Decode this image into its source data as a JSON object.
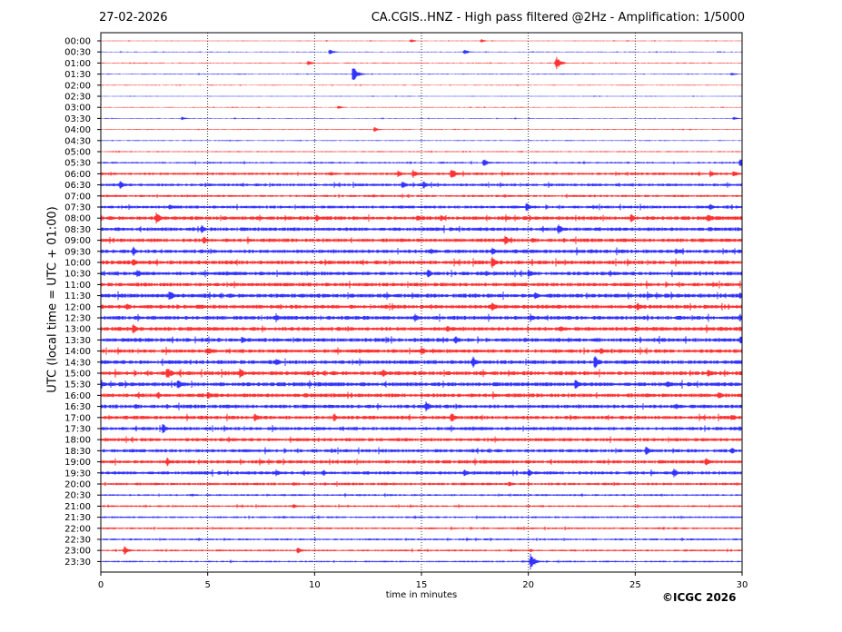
{
  "header": {
    "date": "27-02-2026",
    "title": "CA.CGIS..HNZ - High pass filtered @2Hz - Amplification: 1/5000"
  },
  "footer": {
    "copyright": "©ICGC 2026"
  },
  "chart_data": {
    "type": "line",
    "title": "CA.CGIS..HNZ - High pass filtered @2Hz - Amplification: 1/5000",
    "xlabel": "time in minutes",
    "ylabel": "UTC (local time = UTC + 01:00)",
    "xlim": [
      0,
      30
    ],
    "xticks": [
      0,
      5,
      10,
      15,
      20,
      25,
      30
    ],
    "vertical_gridlines": [
      5,
      10,
      15,
      20,
      25
    ],
    "row_labels": [
      "00:00",
      "00:30",
      "01:00",
      "01:30",
      "02:00",
      "02:30",
      "03:00",
      "03:30",
      "04:00",
      "04:30",
      "05:00",
      "05:30",
      "06:00",
      "06:30",
      "07:00",
      "07:30",
      "08:00",
      "08:30",
      "09:00",
      "09:30",
      "10:00",
      "10:30",
      "11:00",
      "11:30",
      "12:00",
      "12:30",
      "13:00",
      "13:30",
      "14:00",
      "14:30",
      "15:00",
      "15:30",
      "16:00",
      "16:30",
      "17:00",
      "17:30",
      "18:00",
      "18:30",
      "19:00",
      "19:30",
      "20:00",
      "20:30",
      "21:00",
      "21:30",
      "22:00",
      "22:30",
      "23:00",
      "23:30"
    ],
    "row_colors": [
      "#ff0000",
      "#0000ff"
    ],
    "row_noise": [
      0.4,
      0.4,
      0.5,
      0.5,
      0.4,
      0.4,
      0.4,
      0.4,
      0.5,
      0.5,
      0.6,
      0.9,
      1.4,
      1.5,
      1.2,
      1.6,
      2.0,
      2.0,
      2.0,
      2.0,
      2.1,
      2.0,
      2.0,
      2.2,
      2.1,
      2.1,
      2.1,
      2.1,
      2.0,
      2.1,
      2.2,
      2.2,
      2.1,
      2.0,
      1.9,
      1.8,
      1.8,
      1.8,
      1.9,
      1.8,
      1.4,
      1.0,
      1.0,
      1.0,
      1.0,
      1.0,
      1.0,
      0.9
    ],
    "events": [
      {
        "row": 0,
        "minute": 14.5,
        "amp": 2
      },
      {
        "row": 0,
        "minute": 17.8,
        "amp": 2
      },
      {
        "row": 1,
        "minute": 10.7,
        "amp": 3
      },
      {
        "row": 1,
        "minute": 17,
        "amp": 3
      },
      {
        "row": 2,
        "minute": 9.7,
        "amp": 3
      },
      {
        "row": 2,
        "minute": 21.3,
        "amp": 8
      },
      {
        "row": 3,
        "minute": 11.8,
        "amp": 9
      },
      {
        "row": 3,
        "minute": 29.5,
        "amp": 2
      },
      {
        "row": 6,
        "minute": 11.1,
        "amp": 2
      },
      {
        "row": 7,
        "minute": 3.8,
        "amp": 2
      },
      {
        "row": 7,
        "minute": 29.6,
        "amp": 2
      },
      {
        "row": 8,
        "minute": 12.8,
        "amp": 3
      },
      {
        "row": 11,
        "minute": 17.9,
        "amp": 5
      },
      {
        "row": 11,
        "minute": 29.9,
        "amp": 6
      },
      {
        "row": 12,
        "minute": 13.9,
        "amp": 4
      },
      {
        "row": 12,
        "minute": 14.6,
        "amp": 5
      },
      {
        "row": 12,
        "minute": 16.4,
        "amp": 7
      },
      {
        "row": 12,
        "minute": 28.5,
        "amp": 4
      },
      {
        "row": 12,
        "minute": 29.6,
        "amp": 4
      },
      {
        "row": 13,
        "minute": 0.9,
        "amp": 5
      },
      {
        "row": 13,
        "minute": 14.1,
        "amp": 5
      },
      {
        "row": 13,
        "minute": 15.1,
        "amp": 5
      },
      {
        "row": 15,
        "minute": 3.2,
        "amp": 4
      },
      {
        "row": 15,
        "minute": 19.9,
        "amp": 5
      },
      {
        "row": 15,
        "minute": 28.5,
        "amp": 4
      },
      {
        "row": 16,
        "minute": 2.6,
        "amp": 7
      },
      {
        "row": 16,
        "minute": 10.1,
        "amp": 5
      },
      {
        "row": 16,
        "minute": 14.8,
        "amp": 4
      },
      {
        "row": 16,
        "minute": 15.9,
        "amp": 4
      },
      {
        "row": 16,
        "minute": 24.8,
        "amp": 5
      },
      {
        "row": 16,
        "minute": 28.4,
        "amp": 6
      },
      {
        "row": 17,
        "minute": 4.7,
        "amp": 5
      },
      {
        "row": 17,
        "minute": 21.4,
        "amp": 6
      },
      {
        "row": 18,
        "minute": 4.8,
        "amp": 5
      },
      {
        "row": 18,
        "minute": 18.9,
        "amp": 6
      },
      {
        "row": 19,
        "minute": 1.5,
        "amp": 6
      },
      {
        "row": 19,
        "minute": 18.3,
        "amp": 5
      },
      {
        "row": 19,
        "minute": 26.9,
        "amp": 4
      },
      {
        "row": 20,
        "minute": 1.5,
        "amp": 5
      },
      {
        "row": 20,
        "minute": 18.3,
        "amp": 7
      },
      {
        "row": 21,
        "minute": 1.7,
        "amp": 5
      },
      {
        "row": 21,
        "minute": 15.3,
        "amp": 5
      },
      {
        "row": 21,
        "minute": 20,
        "amp": 5
      },
      {
        "row": 23,
        "minute": 3.2,
        "amp": 7
      },
      {
        "row": 23,
        "minute": 20.3,
        "amp": 5
      },
      {
        "row": 23,
        "minute": 29.9,
        "amp": 4
      },
      {
        "row": 24,
        "minute": 1.2,
        "amp": 4
      },
      {
        "row": 24,
        "minute": 18.3,
        "amp": 6
      },
      {
        "row": 24,
        "minute": 25.1,
        "amp": 5
      },
      {
        "row": 25,
        "minute": 8.2,
        "amp": 5
      },
      {
        "row": 25,
        "minute": 14.7,
        "amp": 5
      },
      {
        "row": 25,
        "minute": 20.1,
        "amp": 5
      },
      {
        "row": 25,
        "minute": 29.9,
        "amp": 5
      },
      {
        "row": 26,
        "minute": 1.5,
        "amp": 6
      },
      {
        "row": 26,
        "minute": 16.2,
        "amp": 4
      },
      {
        "row": 26,
        "minute": 25,
        "amp": 4
      },
      {
        "row": 26,
        "minute": 29.9,
        "amp": 4
      },
      {
        "row": 27,
        "minute": 6.6,
        "amp": 5
      },
      {
        "row": 27,
        "minute": 16.6,
        "amp": 5
      },
      {
        "row": 27,
        "minute": 29.9,
        "amp": 5
      },
      {
        "row": 28,
        "minute": 5,
        "amp": 5
      },
      {
        "row": 28,
        "minute": 15,
        "amp": 5
      },
      {
        "row": 28,
        "minute": 23.4,
        "amp": 5
      },
      {
        "row": 29,
        "minute": 8.2,
        "amp": 5
      },
      {
        "row": 29,
        "minute": 17.4,
        "amp": 7
      },
      {
        "row": 29,
        "minute": 23.1,
        "amp": 8
      },
      {
        "row": 30,
        "minute": 3.1,
        "amp": 8
      },
      {
        "row": 30,
        "minute": 6.5,
        "amp": 6
      },
      {
        "row": 30,
        "minute": 13.2,
        "amp": 5
      },
      {
        "row": 30,
        "minute": 28.4,
        "amp": 5
      },
      {
        "row": 31,
        "minute": 3.6,
        "amp": 6
      },
      {
        "row": 31,
        "minute": 22.2,
        "amp": 7
      },
      {
        "row": 31,
        "minute": 26.5,
        "amp": 4
      },
      {
        "row": 32,
        "minute": 5,
        "amp": 5
      },
      {
        "row": 32,
        "minute": 28.9,
        "amp": 5
      },
      {
        "row": 33,
        "minute": 15.2,
        "amp": 7
      },
      {
        "row": 34,
        "minute": 7.2,
        "amp": 5
      },
      {
        "row": 34,
        "minute": 10.9,
        "amp": 5
      },
      {
        "row": 34,
        "minute": 16.4,
        "amp": 6
      },
      {
        "row": 34,
        "minute": 29.5,
        "amp": 5
      },
      {
        "row": 35,
        "minute": 2.9,
        "amp": 6
      },
      {
        "row": 37,
        "minute": 25.5,
        "amp": 5
      },
      {
        "row": 37,
        "minute": 29.5,
        "amp": 4
      },
      {
        "row": 38,
        "minute": 3.1,
        "amp": 5
      },
      {
        "row": 38,
        "minute": 28.3,
        "amp": 5
      },
      {
        "row": 39,
        "minute": 8.2,
        "amp": 4
      },
      {
        "row": 39,
        "minute": 17,
        "amp": 5
      },
      {
        "row": 39,
        "minute": 20,
        "amp": 5
      },
      {
        "row": 39,
        "minute": 26.8,
        "amp": 6
      },
      {
        "row": 40,
        "minute": 19.1,
        "amp": 3
      },
      {
        "row": 42,
        "minute": 9,
        "amp": 3
      },
      {
        "row": 46,
        "minute": 1.1,
        "amp": 5
      },
      {
        "row": 46,
        "minute": 9.2,
        "amp": 4
      },
      {
        "row": 47,
        "minute": 20.1,
        "amp": 9
      }
    ]
  }
}
